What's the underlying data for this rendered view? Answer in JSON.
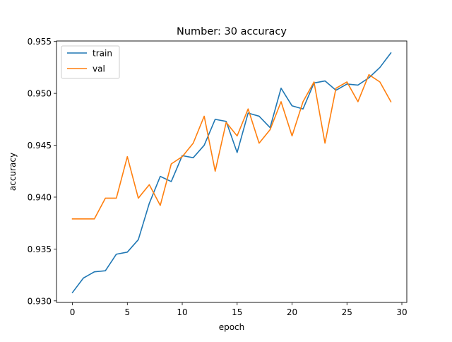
{
  "chart_data": {
    "type": "line",
    "title": "Number: 30 accuracy",
    "xlabel": "epoch",
    "ylabel": "accuracy",
    "xlim": [
      -1.45,
      30.45
    ],
    "ylim": [
      0.92985,
      0.95505
    ],
    "xticks": [
      0,
      5,
      10,
      15,
      20,
      25,
      30
    ],
    "xtick_labels": [
      "0",
      "5",
      "10",
      "15",
      "20",
      "25",
      "30"
    ],
    "yticks": [
      0.93,
      0.935,
      0.94,
      0.945,
      0.95,
      0.955
    ],
    "ytick_labels": [
      "0.930",
      "0.935",
      "0.940",
      "0.945",
      "0.950",
      "0.955"
    ],
    "grid": false,
    "legend_position": "upper-left",
    "x": [
      0,
      1,
      2,
      3,
      4,
      5,
      6,
      7,
      8,
      9,
      10,
      11,
      12,
      13,
      14,
      15,
      16,
      17,
      18,
      19,
      20,
      21,
      22,
      23,
      24,
      25,
      26,
      27,
      28,
      29
    ],
    "series": [
      {
        "name": "train",
        "color": "#1f77b4",
        "values": [
          0.9308,
          0.9322,
          0.9328,
          0.9329,
          0.9345,
          0.9347,
          0.9359,
          0.9394,
          0.942,
          0.9415,
          0.944,
          0.9438,
          0.945,
          0.9475,
          0.9473,
          0.9443,
          0.9481,
          0.9478,
          0.9467,
          0.9505,
          0.9488,
          0.9485,
          0.951,
          0.9512,
          0.9503,
          0.9509,
          0.9508,
          0.9515,
          0.9525,
          0.9539
        ]
      },
      {
        "name": "val",
        "color": "#ff7f0e",
        "values": [
          0.9379,
          0.9379,
          0.9379,
          0.9399,
          0.9399,
          0.9439,
          0.9399,
          0.9412,
          0.9392,
          0.9432,
          0.9439,
          0.9452,
          0.9478,
          0.9425,
          0.9472,
          0.9459,
          0.9485,
          0.9452,
          0.9465,
          0.9492,
          0.9459,
          0.9492,
          0.9511,
          0.9452,
          0.9505,
          0.9511,
          0.9492,
          0.9518,
          0.9511,
          0.9492
        ]
      }
    ]
  }
}
